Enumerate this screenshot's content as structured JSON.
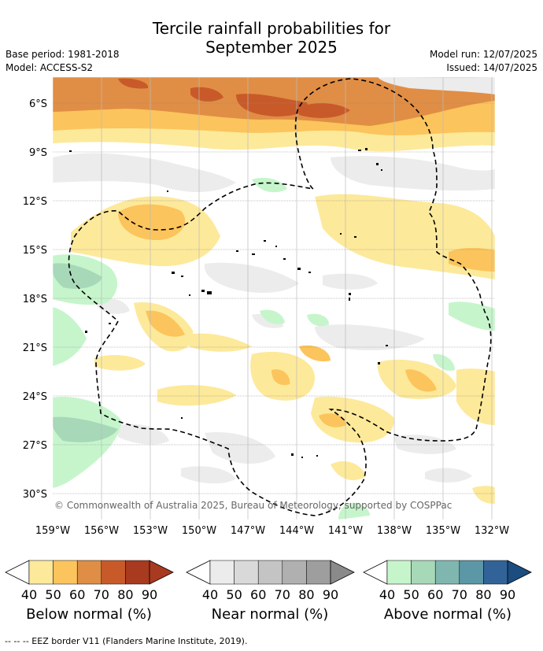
{
  "header": {
    "title_line1": "Tercile rainfall probabilities for",
    "title_line2": "September 2025",
    "base_period": "Base period: 1981-2018",
    "model": "Model: ACCESS-S2",
    "model_run": "Model run: 12/07/2025",
    "issued": "Issued: 14/07/2025"
  },
  "map": {
    "lat_labels": [
      "6°S",
      "9°S",
      "12°S",
      "15°S",
      "18°S",
      "21°S",
      "24°S",
      "27°S",
      "30°S"
    ],
    "lon_labels": [
      "159°W",
      "156°W",
      "153°W",
      "150°W",
      "147°W",
      "144°W",
      "141°W",
      "138°W",
      "135°W",
      "132°W"
    ],
    "copyright": "© Commonwealth of Australia 2025, Bureau of Meteorology, supported by COSPPac"
  },
  "colorbars": [
    {
      "label": "Below normal (%)",
      "ticks": [
        "40",
        "50",
        "60",
        "70",
        "80",
        "90"
      ],
      "colors": [
        "#fde99a",
        "#fcc45c",
        "#e08e45",
        "#c85a2a",
        "#a83a20",
        "#a83a20"
      ]
    },
    {
      "label": "Near normal (%)",
      "ticks": [
        "40",
        "50",
        "60",
        "70",
        "80",
        "90"
      ],
      "colors": [
        "#ececec",
        "#d9d9d9",
        "#c4c4c4",
        "#b0b0b0",
        "#9e9e9e",
        "#8a8a8a"
      ]
    },
    {
      "label": "Above normal (%)",
      "ticks": [
        "40",
        "50",
        "60",
        "70",
        "80",
        "90"
      ],
      "colors": [
        "#c6f5cc",
        "#a7d8b8",
        "#7fb7b0",
        "#5b97a6",
        "#326398",
        "#1b4d80"
      ]
    }
  ],
  "footer": "--  --  -- EEZ border V11 (Flanders Marine Institute, 2019)."
}
